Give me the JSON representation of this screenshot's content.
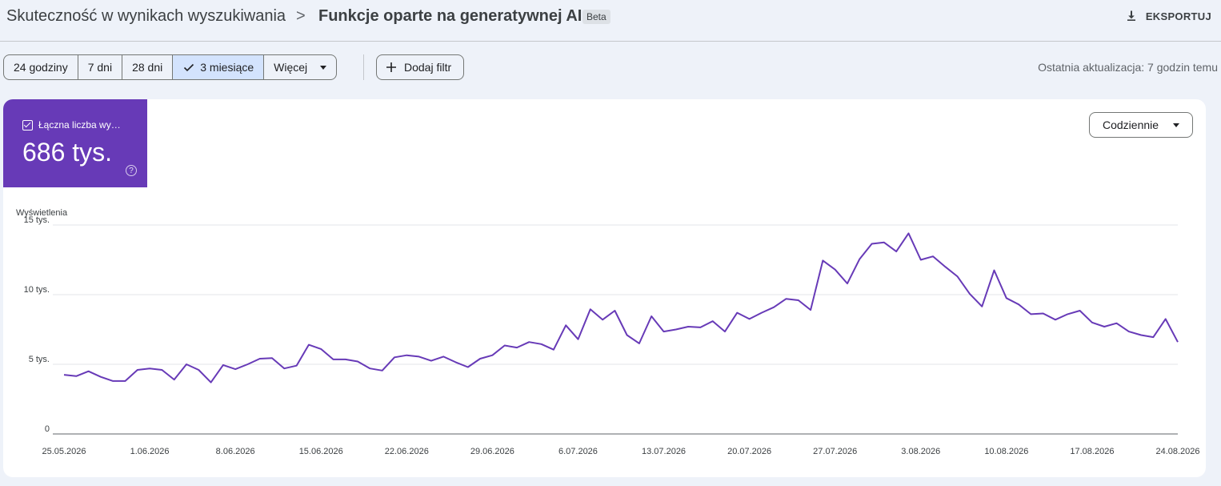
{
  "breadcrumb": {
    "root": "Skuteczność w wynikach wyszukiwania",
    "separator": ">",
    "current": "Funkcje oparte na generatywnej AI",
    "badge": "Beta"
  },
  "actions": {
    "export_label": "EKSPORTUJ",
    "export_icon": "download-icon"
  },
  "date_range": {
    "options": [
      {
        "label": "24 godziny",
        "active": false
      },
      {
        "label": "7 dni",
        "active": false
      },
      {
        "label": "28 dni",
        "active": false
      },
      {
        "label": "3 miesiące",
        "active": true
      },
      {
        "label": "Więcej",
        "active": false
      }
    ]
  },
  "filter": {
    "add_label": "Dodaj filtr",
    "icon": "plus-icon"
  },
  "last_update": "Ostatnia aktualizacja: 7 godzin temu",
  "metric": {
    "label": "Łączna liczba wy…",
    "value": "686 tys.",
    "help": "?",
    "color": "#673ab7"
  },
  "granularity": {
    "selected": "Codziennie"
  },
  "chart_data": {
    "type": "line",
    "ylabel": "Wyświetlenia",
    "y_ticks": [
      {
        "value": 0,
        "label": "0"
      },
      {
        "value": 5000,
        "label": "5 tys."
      },
      {
        "value": 10000,
        "label": "10 tys."
      },
      {
        "value": 15000,
        "label": "15 tys."
      }
    ],
    "ylim": [
      0,
      15000
    ],
    "x_tick_labels": [
      "25.05.2026",
      "1.06.2026",
      "8.06.2026",
      "15.06.2026",
      "22.06.2026",
      "29.06.2026",
      "6.07.2026",
      "13.07.2026",
      "20.07.2026",
      "27.07.2026",
      "3.08.2026",
      "10.08.2026",
      "17.08.2026",
      "24.08.2026"
    ],
    "x_start": "2026-05-25",
    "color": "#673ab7",
    "grid": true,
    "series": [
      {
        "values": [
          4250,
          4150,
          4500,
          4100,
          3800,
          3800,
          4600,
          4700,
          4600,
          3900,
          5000,
          4600,
          3700,
          4950,
          4650,
          5000,
          5400,
          5450,
          4700,
          4900,
          6400,
          6100,
          5350,
          5350,
          5200,
          4700,
          4550,
          5500,
          5650,
          5550,
          5250,
          5550,
          5150,
          4800,
          5400,
          5650,
          6350,
          6200,
          6600,
          6450,
          6050,
          7800,
          6800,
          8950,
          8200,
          8850,
          7100,
          6500,
          8450,
          7350,
          7500,
          7700,
          7650,
          8100,
          7350,
          8700,
          8250,
          8700,
          9100,
          9700,
          9600,
          8900,
          12450,
          11800,
          10800,
          12550,
          13650,
          13750,
          13100,
          14400,
          12500,
          12750,
          12000,
          11300,
          10050,
          9150,
          11750,
          9750,
          9300,
          8600,
          8650,
          8200,
          8600,
          8850,
          8000,
          7700,
          7950,
          7350,
          7100,
          6950,
          8250,
          6600
        ]
      }
    ]
  }
}
